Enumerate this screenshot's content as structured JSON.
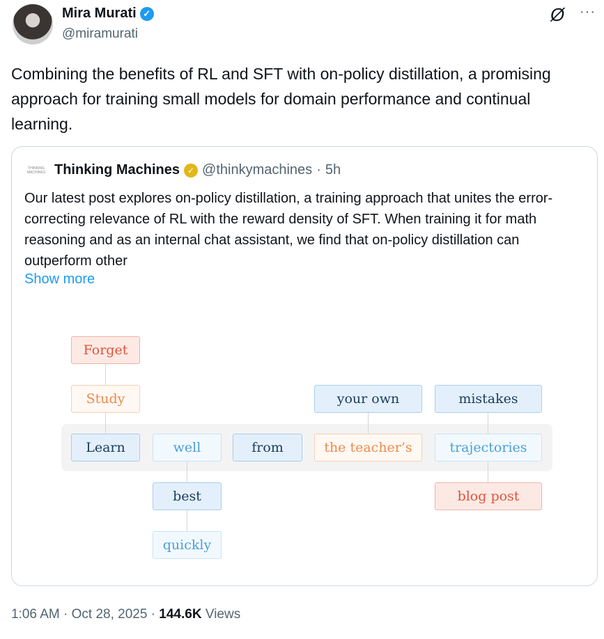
{
  "author": {
    "name": "Mira Murati",
    "handle": "@miramurati",
    "verified": true
  },
  "icons": {
    "grok": "grok-icon",
    "more": "more-icon",
    "verified": "verified-badge-icon"
  },
  "tweet_text": "Combining the benefits of RL and SFT with on-policy distillation, a promising approach for training small models for domain performance and continual learning.",
  "quote": {
    "logo_text": "THINKING MACHINES",
    "name": "Thinking Machines",
    "handle": "@thinkymachines",
    "time": "5h",
    "text": "Our latest post explores on-policy distillation, a training approach that unites the error-correcting relevance of RL with the reward density of SFT. When training it for math reasoning and as an internal chat assistant, we find that on-policy distillation can outperform other",
    "show_more": "Show more",
    "diagram": {
      "forget": "Forget",
      "study": "Study",
      "learn": "Learn",
      "well": "well",
      "best": "best",
      "quickly": "quickly",
      "from": "from",
      "your_own": "your own",
      "the_teachers": "the teacher’s",
      "mistakes": "mistakes",
      "trajectories": "trajectories",
      "blog_post": "blog post"
    }
  },
  "footer": {
    "time": "1:06 AM",
    "date": "Oct 28, 2025",
    "views_count": "144.6K",
    "views_label": "Views"
  },
  "colors": {
    "accent": "#1d9bf0",
    "verified_gold": "#e2b719"
  }
}
